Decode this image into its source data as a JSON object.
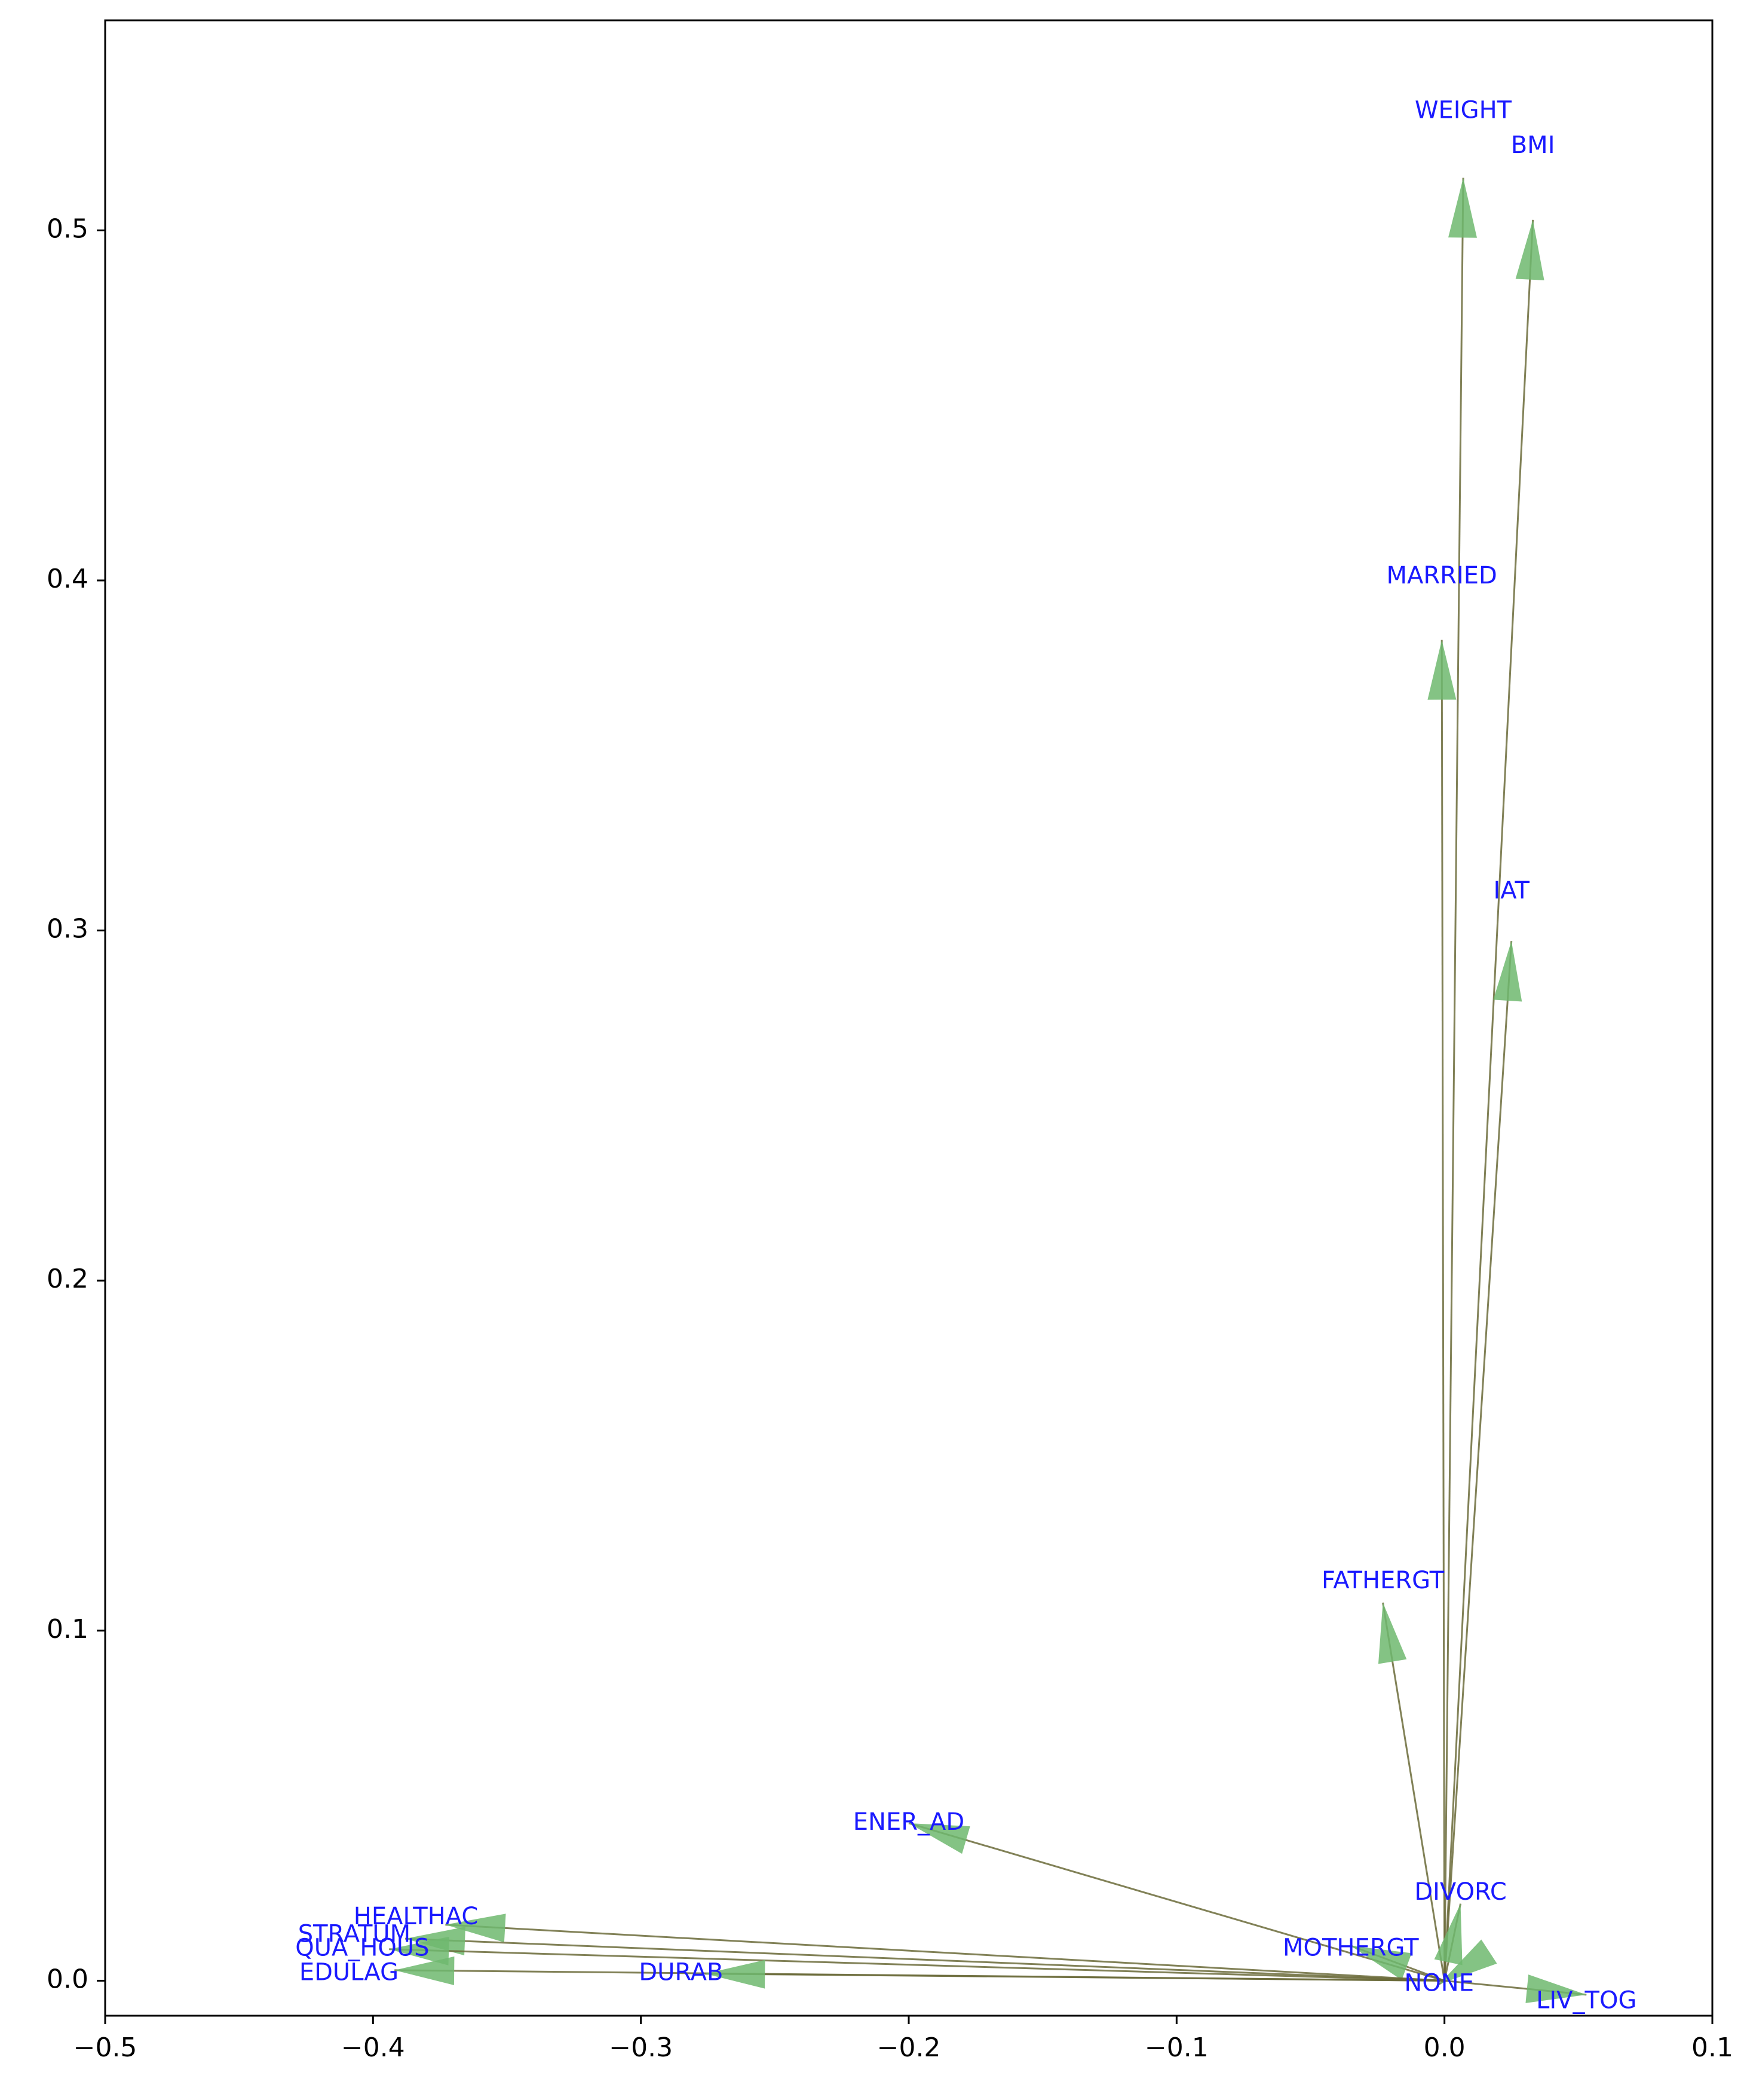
{
  "chart_data": {
    "type": "biplot-vectors",
    "title": "",
    "xlabel": "",
    "ylabel": "",
    "xlim": [
      -0.5,
      0.1
    ],
    "ylim": [
      -0.01,
      0.56
    ],
    "origin": [
      0.0,
      0.0
    ],
    "x_ticks": [
      {
        "value": -0.5,
        "label": "−0.5"
      },
      {
        "value": -0.4,
        "label": "−0.4"
      },
      {
        "value": -0.3,
        "label": "−0.3"
      },
      {
        "value": -0.2,
        "label": "−0.2"
      },
      {
        "value": -0.1,
        "label": "−0.1"
      },
      {
        "value": 0.0,
        "label": "0.0"
      },
      {
        "value": 0.1,
        "label": "0.1"
      }
    ],
    "y_ticks": [
      {
        "value": 0.0,
        "label": "0.0"
      },
      {
        "value": 0.1,
        "label": "0.1"
      },
      {
        "value": 0.2,
        "label": "0.2"
      },
      {
        "value": 0.3,
        "label": "0.3"
      },
      {
        "value": 0.4,
        "label": "0.4"
      },
      {
        "value": 0.5,
        "label": "0.5"
      }
    ],
    "grid": false,
    "arrow_color": "#6fb86f",
    "line_color": "#6b6b3a",
    "label_color": "#1a1aff",
    "vectors": [
      {
        "name": "WEIGHT",
        "x": 0.007,
        "y": 0.515,
        "label_x": 0.007,
        "label_y": 0.534
      },
      {
        "name": "BMI",
        "x": 0.033,
        "y": 0.503,
        "label_x": 0.033,
        "label_y": 0.524
      },
      {
        "name": "MARRIED",
        "x": -0.001,
        "y": 0.383,
        "label_x": -0.001,
        "label_y": 0.401
      },
      {
        "name": "IAT",
        "x": 0.025,
        "y": 0.297,
        "label_x": 0.025,
        "label_y": 0.311
      },
      {
        "name": "FATHERGT",
        "x": -0.023,
        "y": 0.108,
        "label_x": -0.023,
        "label_y": 0.114
      },
      {
        "name": "ENER_AD",
        "x": -0.2,
        "y": 0.045,
        "label_x": -0.2,
        "label_y": 0.045
      },
      {
        "name": "DIVORC",
        "x": 0.006,
        "y": 0.022,
        "label_x": 0.006,
        "label_y": 0.025
      },
      {
        "name": "MOTHERGT",
        "x": -0.035,
        "y": 0.01,
        "label_x": -0.035,
        "label_y": 0.009
      },
      {
        "name": "NONE",
        "x": -0.002,
        "y": -0.001,
        "label_x": -0.002,
        "label_y": -0.001
      },
      {
        "name": "LIV_TOG",
        "x": 0.053,
        "y": -0.004,
        "label_x": 0.053,
        "label_y": -0.006
      },
      {
        "name": "HEALTHAC",
        "x": -0.373,
        "y": 0.016,
        "label_x": -0.384,
        "label_y": 0.018
      },
      {
        "name": "STRATUM",
        "x": -0.388,
        "y": 0.012,
        "label_x": -0.407,
        "label_y": 0.013
      },
      {
        "name": "QUA_HOUS",
        "x": -0.394,
        "y": 0.009,
        "label_x": -0.404,
        "label_y": 0.009
      },
      {
        "name": "EDULAG",
        "x": -0.392,
        "y": 0.003,
        "label_x": -0.409,
        "label_y": 0.002
      },
      {
        "name": "DURAB",
        "x": -0.276,
        "y": 0.002,
        "label_x": -0.285,
        "label_y": 0.002
      }
    ]
  }
}
